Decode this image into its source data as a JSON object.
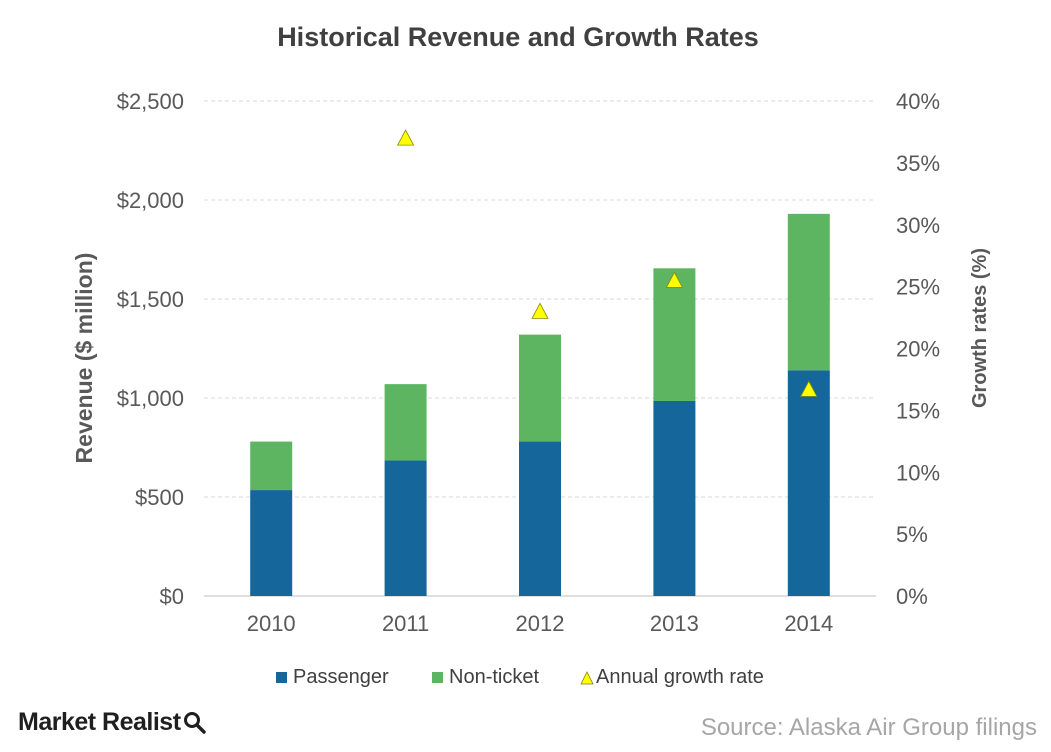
{
  "chart_data": {
    "type": "bar",
    "stacked": true,
    "title": "Historical Revenue and Growth Rates",
    "categories": [
      "2010",
      "2011",
      "2012",
      "2013",
      "2014"
    ],
    "series": [
      {
        "name": "Passenger",
        "axis": "left",
        "kind": "bar",
        "color": "#15669A",
        "values": [
          535,
          685,
          780,
          985,
          1140
        ]
      },
      {
        "name": "Non-ticket",
        "axis": "left",
        "kind": "bar",
        "color": "#5DB562",
        "values": [
          245,
          385,
          540,
          670,
          790
        ]
      },
      {
        "name": "Annual growth rate",
        "axis": "right",
        "kind": "marker",
        "marker": "triangle",
        "color": "#FFFF00",
        "values": [
          null,
          37.0,
          23.0,
          25.5,
          16.7
        ]
      }
    ],
    "ylabel": "Revenue ($ million)",
    "y2label": "Growth rates (%)",
    "ylim": [
      0,
      2500
    ],
    "y2lim": [
      0,
      40
    ],
    "yticks": [
      "$0",
      "$500",
      "$1,000",
      "$1,500",
      "$2,000",
      "$2,500"
    ],
    "y2ticks": [
      "0%",
      "5%",
      "10%",
      "15%",
      "20%",
      "25%",
      "30%",
      "35%",
      "40%"
    ],
    "grid": true,
    "legend": "bottom"
  },
  "branding": {
    "logo_text": "Market Realist",
    "logo_icon": "magnifier-icon"
  },
  "source": "Source: Alaska Air Group filings"
}
